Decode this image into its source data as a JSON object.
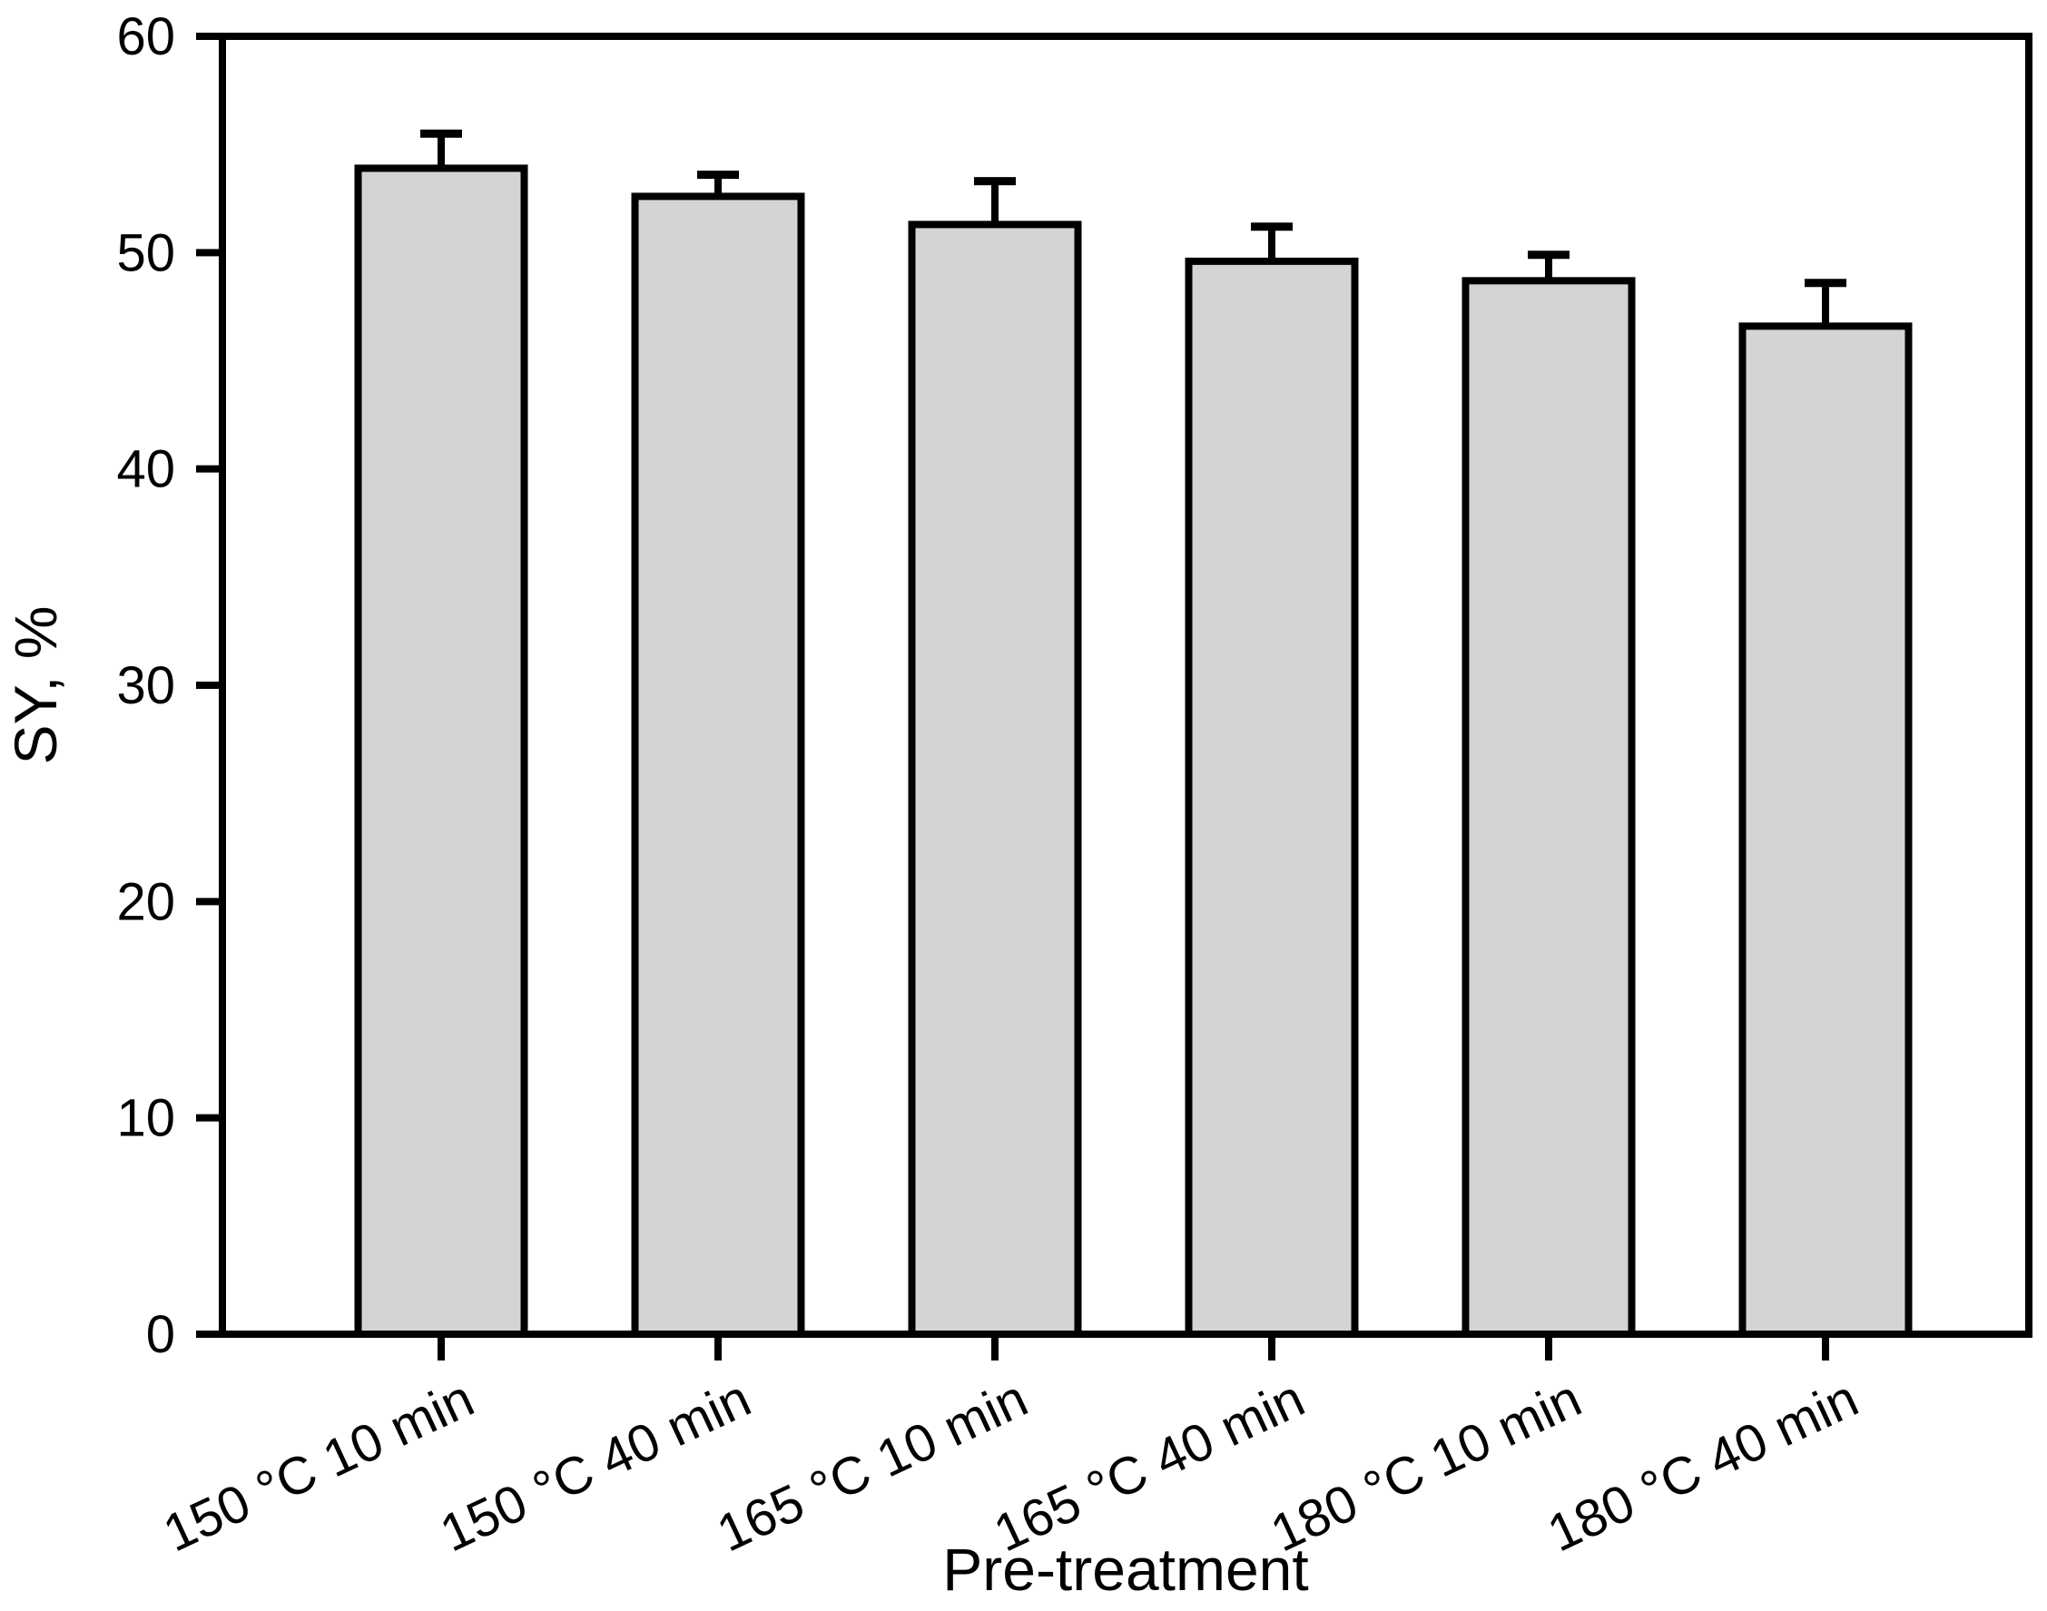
{
  "chart_data": {
    "type": "bar",
    "title": "",
    "xlabel": "Pre-treatment",
    "ylabel": "SY, %",
    "categories": [
      "150 °C 10 min",
      "150 °C 40 min",
      "165 °C 10 min",
      "165 °C 40 min",
      "180 °C 10 min",
      "180 °C 40 min"
    ],
    "values": [
      53.9,
      52.6,
      51.3,
      49.6,
      48.7,
      46.6
    ],
    "errors_up": [
      1.6,
      1.0,
      2.0,
      1.6,
      1.2,
      2.0
    ],
    "ylim": [
      0,
      60
    ],
    "yticks": [
      0,
      10,
      20,
      30,
      40,
      50,
      60
    ],
    "grid": false,
    "legend": null,
    "bar_fill": "#d4d4d4",
    "bar_stroke": "#000000",
    "axis_color": "#000000",
    "background": "#ffffff"
  }
}
